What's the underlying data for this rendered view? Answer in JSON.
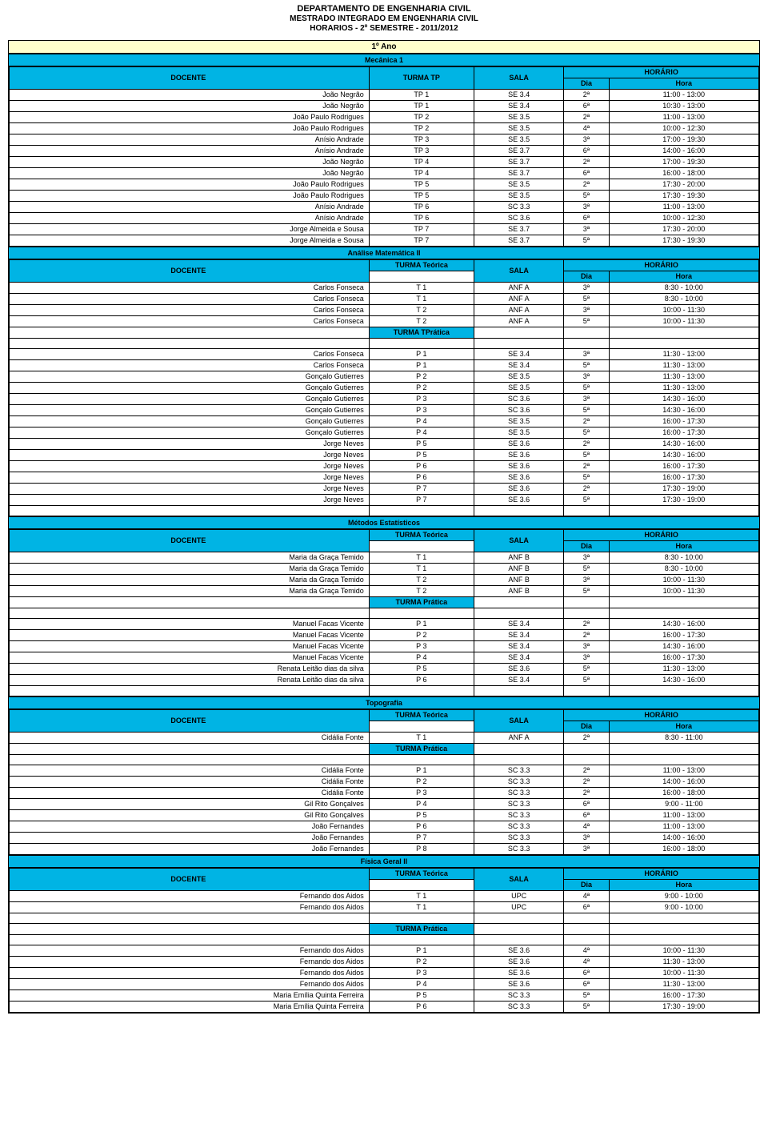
{
  "header": {
    "dept": "DEPARTAMENTO DE ENGENHARIA CIVIL",
    "program": "MESTRADO INTEGRADO EM ENGENHARIA CIVIL",
    "term": "HORARIOS - 2º SEMESTRE - 2011/2012"
  },
  "colors": {
    "year_bg": "#ffffcc",
    "header_bg": "#00b4e4",
    "border": "#000000"
  },
  "labels": {
    "year": "1º Ano",
    "docente": "DOCENTE",
    "turma_tp": "TURMA TP",
    "sala": "SALA",
    "dia": "Dia",
    "hora": "Hora",
    "horario": "HORÁRIO",
    "turma_teorica": "TURMA  Teórica",
    "turma_tpratica": "TURMA  TPrática",
    "turma_pratica": "TURMA  Prática"
  },
  "subjects": {
    "mecanica": {
      "title": "Mecânica 1",
      "rows": [
        [
          "João Negrão",
          "TP 1",
          "SE 3.4",
          "2ª",
          "11:00 - 13:00"
        ],
        [
          "João Negrão",
          "TP 1",
          "SE 3.4",
          "6ª",
          "10:30 - 13:00"
        ],
        [
          "João Paulo Rodrigues",
          "TP 2",
          "SE 3.5",
          "2ª",
          "11:00 - 13:00"
        ],
        [
          "João Paulo Rodrigues",
          "TP 2",
          "SE 3.5",
          "4ª",
          "10:00 - 12:30"
        ],
        [
          "Anísio Andrade",
          "TP 3",
          "SE 3.5",
          "3ª",
          "17:00 - 19:30"
        ],
        [
          "Anísio Andrade",
          "TP 3",
          "SE 3.7",
          "6ª",
          "14:00 - 16:00"
        ],
        [
          "João Negrão",
          "TP 4",
          "SE 3.7",
          "2ª",
          "17:00 - 19:30"
        ],
        [
          "João Negrão",
          "TP 4",
          "SE 3.7",
          "6ª",
          "16:00 - 18:00"
        ],
        [
          "João Paulo Rodrigues",
          "TP 5",
          "SE 3.5",
          "2ª",
          "17:30 - 20:00"
        ],
        [
          "João Paulo Rodrigues",
          "TP 5",
          "SE 3.5",
          "5ª",
          "17:30 - 19:30"
        ],
        [
          "Anísio Andrade",
          "TP 6",
          "SC 3.3",
          "3ª",
          "11:00 - 13:00"
        ],
        [
          "Anísio Andrade",
          "TP 6",
          "SC 3.6",
          "6ª",
          "10:00 - 12:30"
        ],
        [
          "Jorge Almeida e Sousa",
          "TP 7",
          "SE 3.7",
          "3ª",
          "17:30 - 20:00"
        ],
        [
          "Jorge Almeida e Sousa",
          "TP 7",
          "SE 3.7",
          "5ª",
          "17:30 - 19:30"
        ]
      ]
    },
    "analise": {
      "title": "Análise Matemática II",
      "teorica": [
        [
          "Carlos Fonseca",
          "T 1",
          "ANF A",
          "3ª",
          "8:30 - 10:00"
        ],
        [
          "Carlos Fonseca",
          "T 1",
          "ANF A",
          "5ª",
          "8:30 - 10:00"
        ],
        [
          "Carlos Fonseca",
          "T 2",
          "ANF A",
          "3ª",
          "10:00 - 11:30"
        ],
        [
          "Carlos Fonseca",
          "T 2",
          "ANF A",
          "5ª",
          "10:00 - 11:30"
        ]
      ],
      "pratica": [
        [
          "Carlos Fonseca",
          "P 1",
          "SE 3.4",
          "3ª",
          "11:30 - 13:00"
        ],
        [
          "Carlos Fonseca",
          "P 1",
          "SE 3.4",
          "5ª",
          "11:30 - 13:00"
        ],
        [
          "Gonçalo Gutierres",
          "P 2",
          "SE 3.5",
          "3ª",
          "11:30 - 13:00"
        ],
        [
          "Gonçalo Gutierres",
          "P 2",
          "SE 3.5",
          "5ª",
          "11:30 - 13:00"
        ],
        [
          "Gonçalo Gutierres",
          "P 3",
          "SC 3.6",
          "3ª",
          "14:30 - 16:00"
        ],
        [
          "Gonçalo Gutierres",
          "P 3",
          "SC 3.6",
          "5ª",
          "14:30 - 16:00"
        ],
        [
          "Gonçalo Gutierres",
          "P 4",
          "SE 3.5",
          "2ª",
          "16:00 - 17:30"
        ],
        [
          "Gonçalo Gutierres",
          "P 4",
          "SE 3.5",
          "5ª",
          "16:00 - 17:30"
        ],
        [
          "Jorge Neves",
          "P 5",
          "SE 3.6",
          "2ª",
          "14:30 - 16:00"
        ],
        [
          "Jorge Neves",
          "P 5",
          "SE 3.6",
          "5ª",
          "14:30 - 16:00"
        ],
        [
          "Jorge Neves",
          "P 6",
          "SE 3.6",
          "2ª",
          "16:00 - 17:30"
        ],
        [
          "Jorge Neves",
          "P 6",
          "SE 3.6",
          "5ª",
          "16:00 - 17:30"
        ],
        [
          "Jorge Neves",
          "P 7",
          "SE 3.6",
          "2ª",
          "17:30 - 19:00"
        ],
        [
          "Jorge Neves",
          "P 7",
          "SE 3.6",
          "5ª",
          "17:30 - 19:00"
        ]
      ]
    },
    "metodos": {
      "title": "Métodos Estatísticos",
      "teorica": [
        [
          "Maria da Graça Temido",
          "T 1",
          "ANF B",
          "3ª",
          "8:30 - 10:00"
        ],
        [
          "Maria da Graça Temido",
          "T 1",
          "ANF B",
          "5ª",
          "8:30 - 10:00"
        ],
        [
          "Maria da Graça Temido",
          "T 2",
          "ANF B",
          "3ª",
          "10:00 - 11:30"
        ],
        [
          "Maria da Graça Temido",
          "T 2",
          "ANF B",
          "5ª",
          "10:00 - 11:30"
        ]
      ],
      "pratica": [
        [
          "Manuel Facas Vicente",
          "P 1",
          "SE 3.4",
          "2ª",
          "14:30 - 16:00"
        ],
        [
          "Manuel Facas Vicente",
          "P 2",
          "SE 3.4",
          "2ª",
          "16:00 - 17:30"
        ],
        [
          "Manuel Facas Vicente",
          "P 3",
          "SE 3.4",
          "3ª",
          "14:30 - 16:00"
        ],
        [
          "Manuel Facas Vicente",
          "P 4",
          "SE 3.4",
          "3ª",
          "16:00 - 17:30"
        ],
        [
          "Renata Leitão dias da silva",
          "P 5",
          "SE 3.6",
          "5ª",
          "11:30 - 13:00"
        ],
        [
          "Renata Leitão dias da silva",
          "P 6",
          "SE 3.4",
          "5ª",
          "14:30 - 16:00"
        ]
      ]
    },
    "topografia": {
      "title": "Topografia",
      "teorica": [
        [
          "Cidália Fonte",
          "T 1",
          "ANF A",
          "2ª",
          "8:30 - 11:00"
        ]
      ],
      "pratica": [
        [
          "Cidália Fonte",
          "P 1",
          "SC 3.3",
          "2ª",
          "11:00 - 13:00"
        ],
        [
          "Cidália Fonte",
          "P 2",
          "SC 3.3",
          "2ª",
          "14:00 - 16:00"
        ],
        [
          "Cidália Fonte",
          "P 3",
          "SC 3.3",
          "2ª",
          "16:00 - 18:00"
        ],
        [
          "Gil Rito Gonçalves",
          "P 4",
          "SC 3.3",
          "6ª",
          "9:00 - 11:00"
        ],
        [
          "Gil Rito Gonçalves",
          "P 5",
          "SC 3.3",
          "6ª",
          "11:00 - 13:00"
        ],
        [
          "João Fernandes",
          "P 6",
          "SC 3.3",
          "4ª",
          "11:00 - 13:00"
        ],
        [
          "João Fernandes",
          "P 7",
          "SC 3.3",
          "3ª",
          "14:00 - 16:00"
        ],
        [
          "João Fernandes",
          "P 8",
          "SC 3.3",
          "3ª",
          "16:00 - 18:00"
        ]
      ]
    },
    "fisica": {
      "title": "Física Geral II",
      "teorica": [
        [
          "Fernando dos Aidos",
          "T 1",
          "UPC",
          "4ª",
          "9:00 - 10:00"
        ],
        [
          "Fernando dos Aidos",
          "T 1",
          "UPC",
          "6ª",
          "9:00 - 10:00"
        ]
      ],
      "pratica": [
        [
          "Fernando dos Aidos",
          "P 1",
          "SE 3.6",
          "4ª",
          "10:00 - 11:30"
        ],
        [
          "Fernando dos Aidos",
          "P 2",
          "SE 3.6",
          "4ª",
          "11:30 - 13:00"
        ],
        [
          "Fernando dos Aidos",
          "P 3",
          "SE 3.6",
          "6ª",
          "10:00 - 11:30"
        ],
        [
          "Fernando dos Aidos",
          "P 4",
          "SE 3.6",
          "6ª",
          "11:30 - 13:00"
        ],
        [
          "Maria Emília Quinta Ferreira",
          "P 5",
          "SC 3.3",
          "5ª",
          "16:00 - 17:30"
        ],
        [
          "Maria Emília Quinta Ferreira",
          "P 6",
          "SC 3.3",
          "5ª",
          "17:30 - 19:00"
        ]
      ]
    }
  }
}
